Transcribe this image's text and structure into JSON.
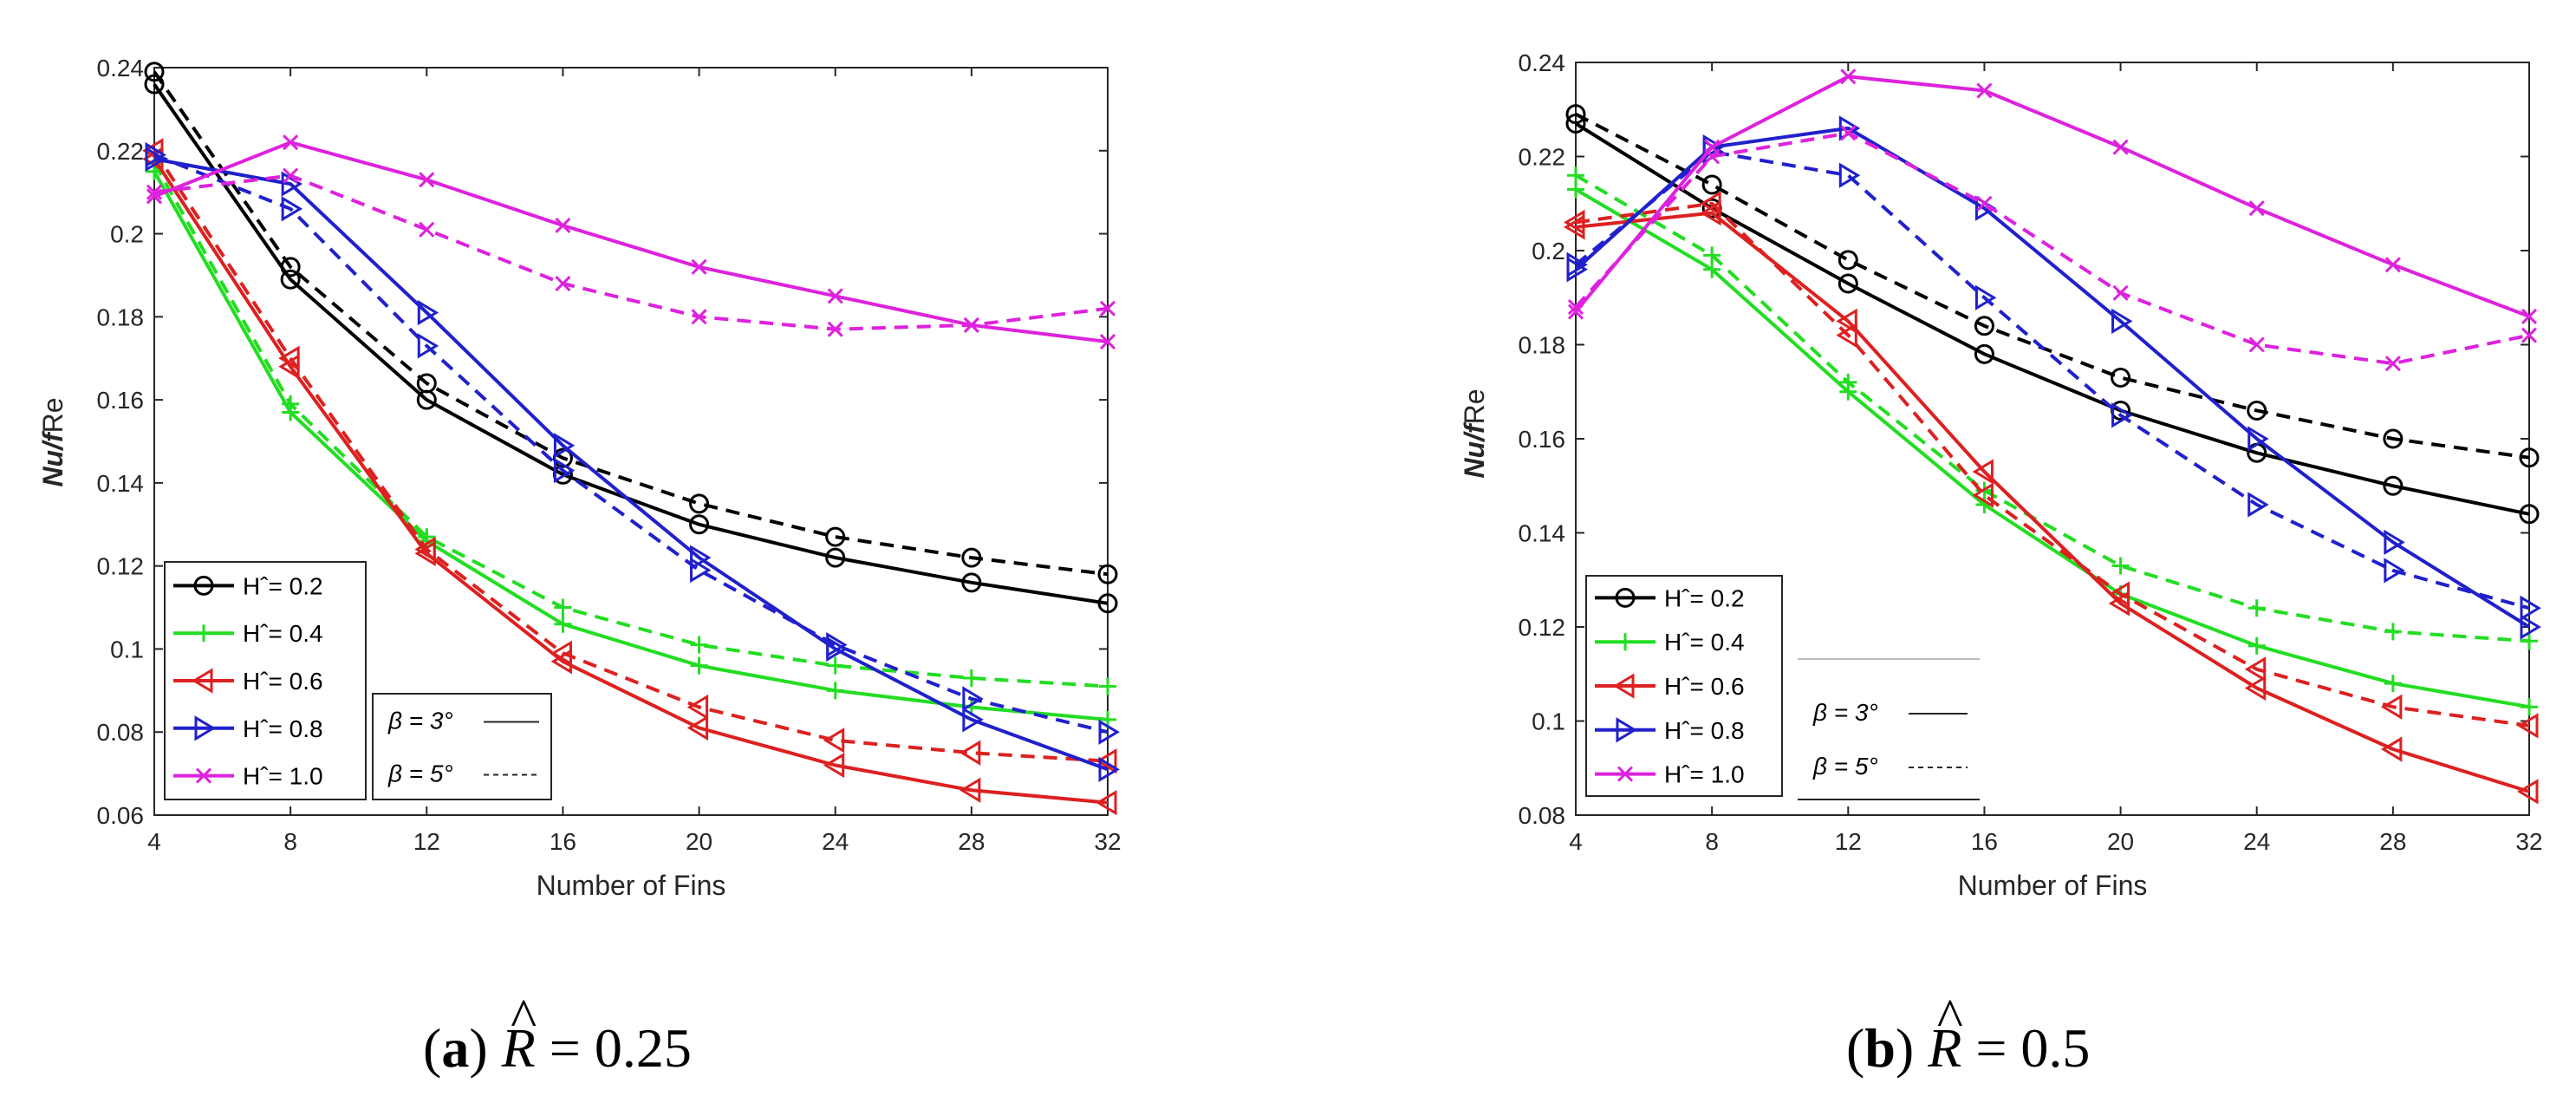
{
  "chart_data": [
    {
      "type": "line",
      "caption": {
        "letter": "a",
        "symbol": "R",
        "hat": "^",
        "equals": "=",
        "value": "0.25"
      },
      "xlabel": "Number of Fins",
      "ylabel": {
        "italic": "Nu/f",
        "rest": "Re"
      },
      "x": [
        4,
        8,
        12,
        16,
        20,
        24,
        28,
        32
      ],
      "xticks": [
        "4",
        "8",
        "12",
        "16",
        "20",
        "24",
        "28",
        "32"
      ],
      "yticks": [
        "0.06",
        "0.08",
        "0.1",
        "0.12",
        "0.14",
        "0.16",
        "0.18",
        "0.2",
        "0.22",
        "0.24"
      ],
      "ylim": [
        0.06,
        0.24
      ],
      "xlim": [
        4,
        32
      ],
      "grid": false,
      "legend": {
        "placement": "bottom-left",
        "entries": [
          {
            "label": "Hˆ= 0.2",
            "color": "#000000",
            "marker": "circle"
          },
          {
            "label": "Hˆ= 0.4",
            "color": "#22dd22",
            "marker": "plus"
          },
          {
            "label": "Hˆ= 0.6",
            "color": "#dd2020",
            "marker": "tri-left"
          },
          {
            "label": "Hˆ= 0.8",
            "color": "#2020cc",
            "marker": "tri-right"
          },
          {
            "label": "Hˆ= 1.0",
            "color": "#dd22dd",
            "marker": "x"
          }
        ]
      },
      "style_legend": {
        "entries": [
          {
            "label": "β = 3°",
            "style": "solid"
          },
          {
            "label": "β = 5°",
            "style": "dashed"
          }
        ]
      },
      "series": [
        {
          "name": "Hˆ= 0.2",
          "beta": "3",
          "style": "solid",
          "color": "#000000",
          "marker": "circle",
          "values": [
            0.236,
            0.189,
            0.16,
            0.142,
            0.13,
            0.122,
            0.116,
            0.111
          ]
        },
        {
          "name": "Hˆ= 0.2",
          "beta": "5",
          "style": "dashed",
          "color": "#000000",
          "marker": "circle",
          "values": [
            0.239,
            0.192,
            0.164,
            0.146,
            0.135,
            0.127,
            0.122,
            0.118
          ]
        },
        {
          "name": "Hˆ= 0.4",
          "beta": "3",
          "style": "solid",
          "color": "#22dd22",
          "marker": "plus",
          "values": [
            0.215,
            0.157,
            0.126,
            0.106,
            0.096,
            0.09,
            0.086,
            0.083
          ]
        },
        {
          "name": "Hˆ= 0.4",
          "beta": "5",
          "style": "dashed",
          "color": "#22dd22",
          "marker": "plus",
          "values": [
            0.217,
            0.159,
            0.127,
            0.11,
            0.101,
            0.096,
            0.093,
            0.091
          ]
        },
        {
          "name": "Hˆ= 0.6",
          "beta": "3",
          "style": "solid",
          "color": "#dd2020",
          "marker": "tri-left",
          "values": [
            0.218,
            0.168,
            0.123,
            0.097,
            0.081,
            0.072,
            0.066,
            0.063
          ]
        },
        {
          "name": "Hˆ= 0.6",
          "beta": "5",
          "style": "dashed",
          "color": "#dd2020",
          "marker": "tri-left",
          "values": [
            0.22,
            0.17,
            0.124,
            0.099,
            0.086,
            0.078,
            0.075,
            0.073
          ]
        },
        {
          "name": "Hˆ= 0.8",
          "beta": "3",
          "style": "solid",
          "color": "#2020cc",
          "marker": "tri-right",
          "values": [
            0.218,
            0.212,
            0.181,
            0.149,
            0.122,
            0.1,
            0.083,
            0.071
          ]
        },
        {
          "name": "Hˆ= 0.8",
          "beta": "5",
          "style": "dashed",
          "color": "#2020cc",
          "marker": "tri-right",
          "values": [
            0.219,
            0.206,
            0.173,
            0.143,
            0.119,
            0.101,
            0.088,
            0.08
          ]
        },
        {
          "name": "Hˆ= 1.0",
          "beta": "3",
          "style": "solid",
          "color": "#dd22dd",
          "marker": "x",
          "values": [
            0.209,
            0.222,
            0.213,
            0.202,
            0.192,
            0.185,
            0.178,
            0.174
          ]
        },
        {
          "name": "Hˆ= 1.0",
          "beta": "5",
          "style": "dashed",
          "color": "#dd22dd",
          "marker": "x",
          "values": [
            0.21,
            0.214,
            0.201,
            0.188,
            0.18,
            0.177,
            0.178,
            0.182
          ]
        }
      ]
    },
    {
      "type": "line",
      "caption": {
        "letter": "b",
        "symbol": "R",
        "hat": "^",
        "equals": "=",
        "value": "0.5"
      },
      "xlabel": "Number of Fins",
      "ylabel": {
        "italic": "Nu/f",
        "rest": "Re"
      },
      "x": [
        4,
        8,
        12,
        16,
        20,
        24,
        28,
        32
      ],
      "xticks": [
        "4",
        "8",
        "12",
        "16",
        "20",
        "24",
        "28",
        "32"
      ],
      "yticks": [
        "0.08",
        "0.1",
        "0.12",
        "0.14",
        "0.16",
        "0.18",
        "0.2",
        "0.22",
        "0.24"
      ],
      "ylim": [
        0.08,
        0.24
      ],
      "xlim": [
        4,
        32
      ],
      "grid": false,
      "legend": {
        "placement": "bottom-left",
        "entries": [
          {
            "label": "Hˆ= 0.2",
            "color": "#000000",
            "marker": "circle"
          },
          {
            "label": "Hˆ= 0.4",
            "color": "#22dd22",
            "marker": "plus"
          },
          {
            "label": "Hˆ= 0.6",
            "color": "#dd2020",
            "marker": "tri-left"
          },
          {
            "label": "Hˆ= 0.8",
            "color": "#2020cc",
            "marker": "tri-right"
          },
          {
            "label": "Hˆ= 1.0",
            "color": "#dd22dd",
            "marker": "x"
          }
        ]
      },
      "style_legend": {
        "entries": [
          {
            "label": "β = 3°",
            "style": "solid"
          },
          {
            "label": "β = 5°",
            "style": "dashed"
          }
        ]
      },
      "series": [
        {
          "name": "Hˆ= 0.2",
          "beta": "3",
          "style": "solid",
          "color": "#000000",
          "marker": "circle",
          "values": [
            0.227,
            0.209,
            0.193,
            0.178,
            0.166,
            0.157,
            0.15,
            0.144
          ]
        },
        {
          "name": "Hˆ= 0.2",
          "beta": "5",
          "style": "dashed",
          "color": "#000000",
          "marker": "circle",
          "values": [
            0.229,
            0.214,
            0.198,
            0.184,
            0.173,
            0.166,
            0.16,
            0.156
          ]
        },
        {
          "name": "Hˆ= 0.4",
          "beta": "3",
          "style": "solid",
          "color": "#22dd22",
          "marker": "plus",
          "values": [
            0.213,
            0.196,
            0.17,
            0.146,
            0.127,
            0.116,
            0.108,
            0.103
          ]
        },
        {
          "name": "Hˆ= 0.4",
          "beta": "5",
          "style": "dashed",
          "color": "#22dd22",
          "marker": "plus",
          "values": [
            0.216,
            0.199,
            0.172,
            0.149,
            0.133,
            0.124,
            0.119,
            0.117
          ]
        },
        {
          "name": "Hˆ= 0.6",
          "beta": "3",
          "style": "solid",
          "color": "#dd2020",
          "marker": "tri-left",
          "values": [
            0.205,
            0.208,
            0.185,
            0.153,
            0.125,
            0.107,
            0.094,
            0.085
          ]
        },
        {
          "name": "Hˆ= 0.6",
          "beta": "5",
          "style": "dashed",
          "color": "#dd2020",
          "marker": "tri-left",
          "values": [
            0.206,
            0.21,
            0.182,
            0.148,
            0.127,
            0.111,
            0.103,
            0.099
          ]
        },
        {
          "name": "Hˆ= 0.8",
          "beta": "3",
          "style": "solid",
          "color": "#2020cc",
          "marker": "tri-right",
          "values": [
            0.196,
            0.222,
            0.226,
            0.209,
            0.185,
            0.16,
            0.138,
            0.12
          ]
        },
        {
          "name": "Hˆ= 0.8",
          "beta": "5",
          "style": "dashed",
          "color": "#2020cc",
          "marker": "tri-right",
          "values": [
            0.197,
            0.221,
            0.216,
            0.19,
            0.165,
            0.146,
            0.132,
            0.124
          ]
        },
        {
          "name": "Hˆ= 1.0",
          "beta": "3",
          "style": "solid",
          "color": "#dd22dd",
          "marker": "x",
          "values": [
            0.187,
            0.222,
            0.237,
            0.234,
            0.222,
            0.209,
            0.197,
            0.186
          ]
        },
        {
          "name": "Hˆ= 1.0",
          "beta": "5",
          "style": "dashed",
          "color": "#dd22dd",
          "marker": "x",
          "values": [
            0.188,
            0.22,
            0.225,
            0.21,
            0.191,
            0.18,
            0.176,
            0.182
          ]
        }
      ]
    }
  ]
}
